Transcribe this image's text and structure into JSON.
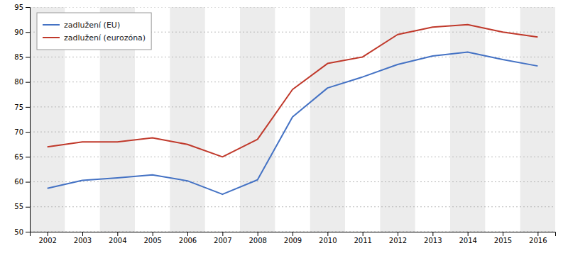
{
  "chart_data": {
    "type": "line",
    "x": [
      2002,
      2003,
      2004,
      2005,
      2006,
      2007,
      2008,
      2009,
      2010,
      2011,
      2012,
      2013,
      2014,
      2015,
      2016
    ],
    "xlim": [
      2001.5,
      2016.5
    ],
    "xticks": [
      2002,
      2003,
      2004,
      2005,
      2006,
      2007,
      2008,
      2009,
      2010,
      2011,
      2012,
      2013,
      2014,
      2015,
      2016
    ],
    "ylim": [
      50,
      95
    ],
    "yticks": [
      50,
      55,
      60,
      65,
      70,
      75,
      80,
      85,
      90,
      95
    ],
    "grid": true,
    "legend": "upper-left",
    "series": [
      {
        "name": "zadlužení (EU)",
        "color": "#4472C4",
        "values": [
          58.7,
          60.3,
          60.8,
          61.4,
          60.2,
          57.5,
          60.4,
          73.0,
          78.8,
          81.0,
          83.5,
          85.2,
          86.0,
          84.5,
          83.2
        ]
      },
      {
        "name": "zadlužení (eurozóna)",
        "color": "#C0392B",
        "values": [
          67.0,
          68.0,
          68.0,
          68.8,
          67.5,
          65.0,
          68.5,
          78.5,
          83.7,
          85.0,
          89.5,
          91.0,
          91.5,
          90.0,
          89.0
        ]
      }
    ]
  }
}
